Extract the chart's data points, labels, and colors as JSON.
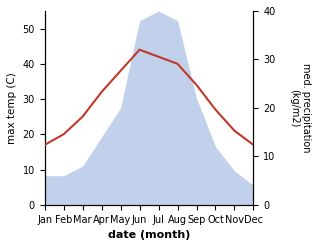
{
  "months": [
    "Jan",
    "Feb",
    "Mar",
    "Apr",
    "May",
    "Jun",
    "Jul",
    "Aug",
    "Sep",
    "Oct",
    "Nov",
    "Dec"
  ],
  "temperature": [
    17,
    20,
    25,
    32,
    38,
    44,
    42,
    40,
    34,
    27,
    21,
    17
  ],
  "precipitation": [
    6,
    6,
    8,
    14,
    20,
    38,
    40,
    38,
    22,
    12,
    7,
    4
  ],
  "temp_color": "#c0392b",
  "precip_color": "#b8c9e8",
  "temp_ylim": [
    0,
    55
  ],
  "precip_ylim": [
    0,
    40
  ],
  "temp_yticks": [
    0,
    10,
    20,
    30,
    40,
    50
  ],
  "precip_yticks": [
    0,
    10,
    20,
    30,
    40
  ],
  "ylabel_left": "max temp (C)",
  "ylabel_right": "med. precipitation\n(kg/m2)",
  "xlabel": "date (month)",
  "fig_width": 3.18,
  "fig_height": 2.47,
  "dpi": 100
}
